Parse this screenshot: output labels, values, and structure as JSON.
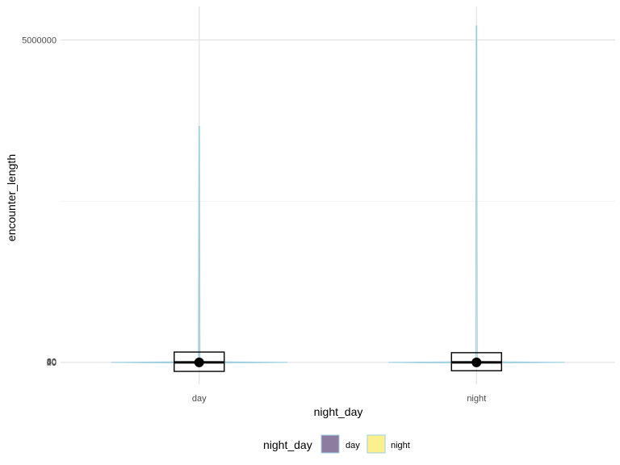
{
  "chart_data": {
    "type": "violin",
    "title": "",
    "xlabel": "night_day",
    "ylabel": "encounter_length",
    "categories": [
      "day",
      "night"
    ],
    "ylim": [
      -340000,
      5520000
    ],
    "y_ticks": [
      {
        "value": 0,
        "label": "0"
      },
      {
        "value": 5000000,
        "label": "5000000"
      }
    ],
    "stacked_low_tick_labels": [
      "20",
      "40",
      "60",
      "80"
    ],
    "grid": true,
    "legend": {
      "title": "night_day",
      "position": "bottom",
      "entries": [
        {
          "label": "day",
          "color": "#8E7CA0"
        },
        {
          "label": "night",
          "color": "#FBEF8E"
        }
      ]
    },
    "series": [
      {
        "name": "day",
        "violin_max": 3660000,
        "box": {
          "q1": -140000,
          "median": 0,
          "q3": 160000,
          "mean": 0
        }
      },
      {
        "name": "night",
        "violin_max": 5220000,
        "box": {
          "q1": -130000,
          "median": 0,
          "q3": 150000,
          "mean": 0
        }
      }
    ],
    "colors": {
      "violin_outline": "#9ACFE2",
      "box": "#000000",
      "grid_major": "#E3E3E3",
      "grid_minor": "#F1F1F1"
    }
  }
}
